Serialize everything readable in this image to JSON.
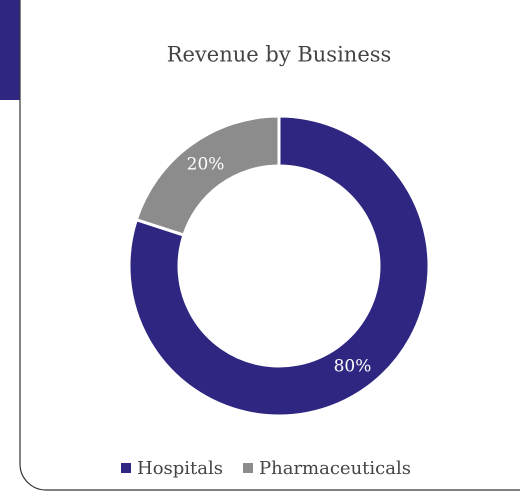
{
  "chart_data": {
    "type": "donut",
    "title": "Revenue by Business",
    "categories": [
      "Hospitals",
      "Pharmaceuticals"
    ],
    "values": [
      80,
      20
    ],
    "value_labels": [
      "80%",
      "20%"
    ],
    "colors": [
      "#2e2680",
      "#8c8c8c"
    ]
  }
}
